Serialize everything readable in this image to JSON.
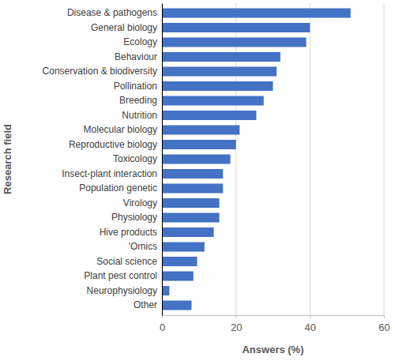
{
  "chart_data": {
    "type": "bar",
    "orientation": "horizontal",
    "categories": [
      "Disease & pathogens",
      "General biology",
      "Ecology",
      "Behaviour",
      "Conservation & biodiversity",
      "Pollination",
      "Breeding",
      "Nutrition",
      "Molecular biology",
      "Reproductive biology",
      "Toxicology",
      "Insect-plant interaction",
      "Population genetic",
      "Virology",
      "Physiology",
      "Hive products",
      "'Omics",
      "Social science",
      "Plant pest control",
      "Neurophysiology",
      "Other"
    ],
    "values": [
      51,
      40,
      39,
      32,
      31,
      30,
      27.5,
      25.5,
      21,
      20,
      18.5,
      16.5,
      16.5,
      15.5,
      15.5,
      14,
      11.5,
      9.5,
      8.5,
      2,
      8
    ],
    "color": "#4472c4",
    "x_label": "Answers (%)",
    "y_label": "Research field",
    "xlim": [
      0,
      60
    ],
    "xticks": [
      0,
      20,
      40,
      60
    ],
    "grid": true
  }
}
